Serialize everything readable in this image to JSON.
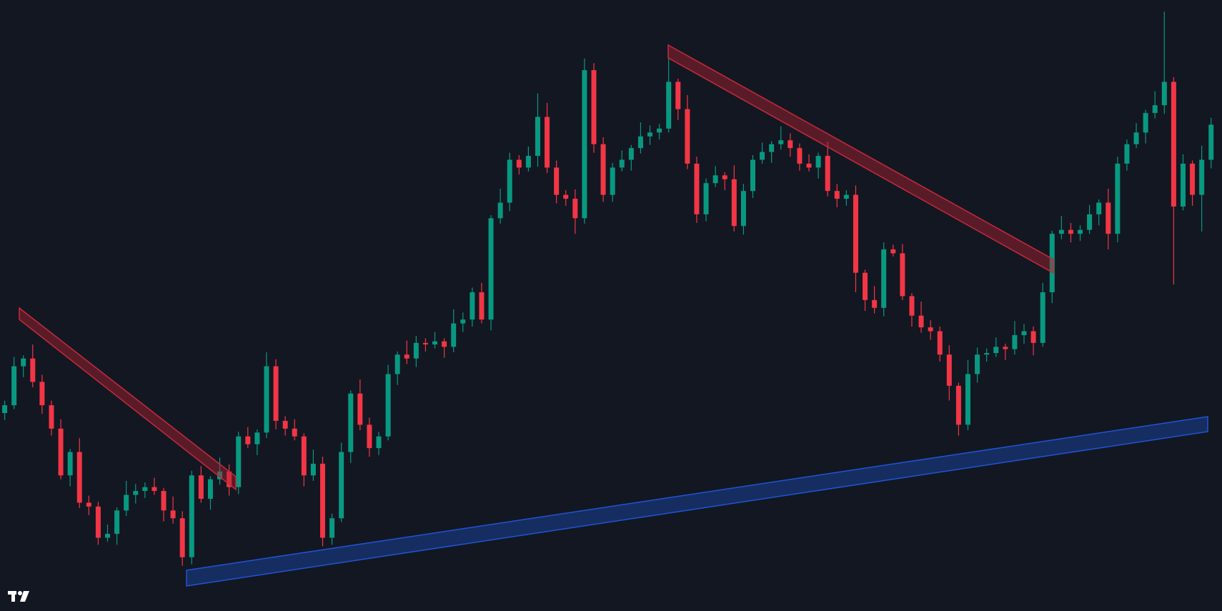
{
  "chart_data": {
    "type": "candlestick",
    "ylim": [
      0,
      784
    ],
    "up_color": "#089981",
    "down_color": "#f23645",
    "open": [
      254,
      264,
      314,
      324,
      294,
      264,
      234,
      174,
      204,
      139,
      134,
      94,
      99,
      129,
      149,
      154,
      159,
      154,
      129,
      119,
      69,
      174,
      144,
      169,
      179,
      159,
      224,
      214,
      229,
      314,
      244,
      234,
      224,
      174,
      189,
      94,
      119,
      204,
      279,
      239,
      209,
      224,
      304,
      329,
      324,
      344,
      342,
      346,
      339,
      369,
      374,
      409,
      374,
      504,
      524,
      579,
      569,
      584,
      634,
      569,
      534,
      529,
      504,
      694,
      599,
      534,
      569,
      579,
      594,
      609,
      614,
      619,
      679,
      644,
      574,
      509,
      549,
      559,
      554,
      494,
      539,
      579,
      589,
      599,
      604,
      594,
      574,
      569,
      584,
      539,
      529,
      534,
      434,
      399,
      389,
      464,
      459,
      404,
      379,
      364,
      359,
      329,
      289,
      239,
      304,
      329,
      331,
      339,
      336,
      354,
      359,
      344,
      409,
      484,
      489,
      484,
      489,
      509,
      524,
      484,
      574,
      599,
      614,
      639,
      649,
      679,
      519,
      574,
      534,
      579
    ],
    "high": [
      270,
      326,
      328,
      342,
      303,
      270,
      246,
      208,
      222,
      148,
      140,
      111,
      133,
      167,
      163,
      165,
      171,
      158,
      147,
      128,
      180,
      186,
      173,
      197,
      188,
      230,
      236,
      233,
      332,
      323,
      250,
      246,
      228,
      207,
      198,
      125,
      216,
      283,
      297,
      248,
      230,
      316,
      333,
      347,
      353,
      350,
      358,
      350,
      387,
      383,
      415,
      421,
      508,
      542,
      588,
      585,
      596,
      664,
      652,
      578,
      540,
      541,
      709,
      703,
      608,
      575,
      591,
      598,
      627,
      623,
      625,
      709,
      683,
      662,
      583,
      555,
      571,
      563,
      572,
      548,
      585,
      601,
      603,
      622,
      613,
      600,
      586,
      588,
      602,
      548,
      540,
      546,
      438,
      417,
      473,
      470,
      471,
      408,
      397,
      373,
      365,
      341,
      293,
      322,
      338,
      337,
      351,
      343,
      372,
      368,
      365,
      421,
      488,
      507,
      498,
      495,
      521,
      528,
      542,
      583,
      605,
      626,
      643,
      667,
      769,
      685,
      586,
      578,
      597,
      633
    ],
    "low": [
      245,
      259,
      300,
      287,
      253,
      225,
      169,
      160,
      132,
      123,
      85,
      89,
      85,
      122,
      138,
      145,
      149,
      115,
      112,
      58,
      60,
      139,
      130,
      162,
      148,
      150,
      209,
      200,
      222,
      233,
      225,
      219,
      160,
      167,
      83,
      85,
      114,
      190,
      232,
      198,
      200,
      219,
      290,
      317,
      313,
      333,
      337,
      325,
      332,
      358,
      365,
      369,
      360,
      497,
      513,
      560,
      564,
      570,
      562,
      523,
      520,
      484,
      497,
      588,
      525,
      525,
      564,
      565,
      587,
      598,
      605,
      614,
      630,
      567,
      498,
      500,
      544,
      540,
      487,
      483,
      530,
      574,
      575,
      592,
      583,
      565,
      564,
      555,
      532,
      518,
      520,
      409,
      385,
      382,
      378,
      455,
      399,
      365,
      357,
      348,
      320,
      270,
      225,
      232,
      293,
      320,
      326,
      322,
      329,
      343,
      328,
      339,
      395,
      477,
      473,
      475,
      484,
      495,
      464,
      473,
      565,
      594,
      600,
      632,
      638,
      419,
      514,
      520,
      487,
      568
    ],
    "close": [
      264,
      314,
      324,
      294,
      264,
      234,
      174,
      204,
      139,
      134,
      94,
      99,
      129,
      149,
      154,
      159,
      154,
      129,
      119,
      69,
      174,
      144,
      169,
      179,
      159,
      224,
      214,
      229,
      314,
      244,
      234,
      224,
      174,
      189,
      94,
      119,
      204,
      279,
      239,
      209,
      224,
      304,
      329,
      324,
      344,
      342,
      346,
      339,
      369,
      374,
      409,
      374,
      504,
      524,
      579,
      569,
      584,
      634,
      569,
      534,
      529,
      504,
      694,
      599,
      534,
      569,
      579,
      594,
      609,
      614,
      619,
      679,
      644,
      574,
      509,
      549,
      559,
      554,
      494,
      539,
      579,
      589,
      599,
      604,
      594,
      574,
      569,
      584,
      539,
      529,
      534,
      434,
      399,
      389,
      464,
      459,
      404,
      379,
      364,
      359,
      329,
      289,
      239,
      304,
      329,
      331,
      339,
      336,
      354,
      359,
      344,
      409,
      484,
      489,
      484,
      489,
      509,
      524,
      484,
      574,
      599,
      614,
      639,
      649,
      679,
      519,
      574,
      534,
      579,
      624
    ]
  }
}
